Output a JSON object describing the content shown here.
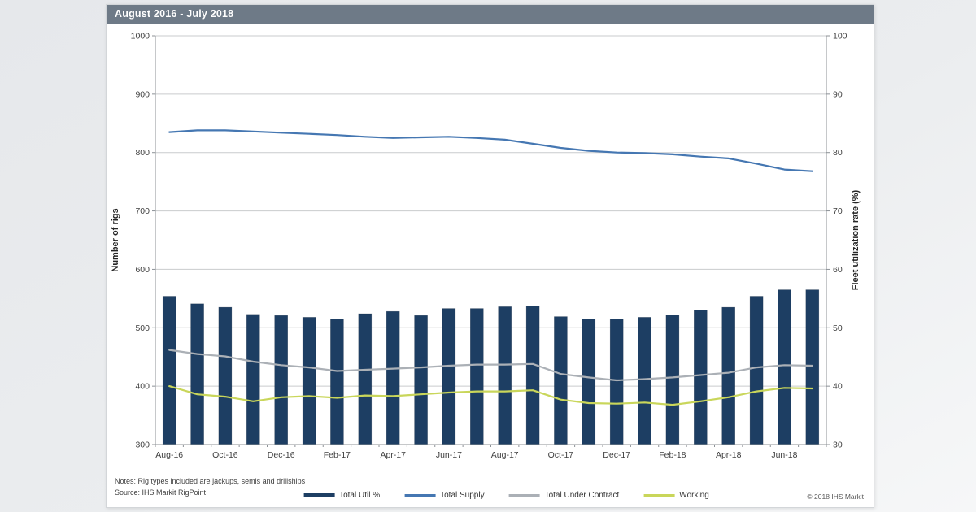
{
  "page": {
    "title": "August 2016 - July 2018",
    "notes": "Notes: Rig types included are jackups, semis and drillships",
    "source": "Source: IHS Markit RigPoint",
    "copyright": "© 2018 IHS Markit"
  },
  "colors": {
    "header_bg": "#6e7a87",
    "bar": "#1d3e63",
    "supply_line": "#4577b2",
    "contract_line": "#abb0b6",
    "working_line": "#c9d65a",
    "grid": "#c9cbcd",
    "axis": "#8c9196",
    "card_bg": "#ffffff"
  },
  "chart_data": {
    "type": "bar",
    "subtype": "combo-bar-line-dual-axis",
    "title": "August 2016 - July 2018",
    "x": [
      "Aug-16",
      "Sep-16",
      "Oct-16",
      "Nov-16",
      "Dec-16",
      "Jan-17",
      "Feb-17",
      "Mar-17",
      "Apr-17",
      "May-17",
      "Jun-17",
      "Jul-17",
      "Aug-17",
      "Sep-17",
      "Oct-17",
      "Nov-17",
      "Dec-17",
      "Jan-18",
      "Feb-18",
      "Mar-18",
      "Apr-18",
      "May-18",
      "Jun-18",
      "Jul-18"
    ],
    "x_tick_labels": [
      "Aug-16",
      "Oct-16",
      "Dec-16",
      "Feb-17",
      "Apr-17",
      "Jun-17",
      "Aug-17",
      "Oct-17",
      "Dec-17",
      "Feb-18",
      "Apr-18",
      "Jun-18"
    ],
    "left_axis": {
      "label": "Number of rigs",
      "min": 300,
      "max": 1000,
      "step": 100
    },
    "right_axis": {
      "label": "Fleet utilization rate (%)",
      "min": 30,
      "max": 100,
      "step": 10
    },
    "grid": "horizontal",
    "legend_position": "bottom",
    "series": [
      {
        "name": "Total Util %",
        "type": "bar",
        "axis": "right",
        "color": "#1d3e63",
        "values": [
          55.4,
          54.1,
          53.5,
          52.3,
          52.1,
          51.8,
          51.5,
          52.4,
          52.8,
          52.1,
          53.3,
          53.3,
          53.6,
          53.7,
          51.9,
          51.5,
          51.5,
          51.8,
          52.2,
          53.0,
          53.5,
          55.4,
          56.5,
          56.5
        ]
      },
      {
        "name": "Total Supply",
        "type": "line",
        "axis": "left",
        "color": "#4577b2",
        "values": [
          835,
          838,
          838,
          836,
          834,
          832,
          830,
          827,
          825,
          826,
          827,
          825,
          822,
          815,
          808,
          803,
          800,
          799,
          797,
          793,
          790,
          781,
          771,
          768
        ]
      },
      {
        "name": "Total Under Contract",
        "type": "line",
        "axis": "left",
        "color": "#abb0b6",
        "values": [
          462,
          455,
          451,
          442,
          436,
          432,
          426,
          428,
          430,
          432,
          435,
          437,
          437,
          438,
          421,
          415,
          410,
          412,
          415,
          419,
          423,
          432,
          436,
          435
        ]
      },
      {
        "name": "Working",
        "type": "line",
        "axis": "left",
        "color": "#c9d65a",
        "values": [
          400,
          386,
          382,
          374,
          381,
          383,
          380,
          384,
          383,
          386,
          389,
          391,
          391,
          393,
          377,
          371,
          370,
          372,
          368,
          374,
          381,
          391,
          397,
          396
        ]
      }
    ]
  }
}
